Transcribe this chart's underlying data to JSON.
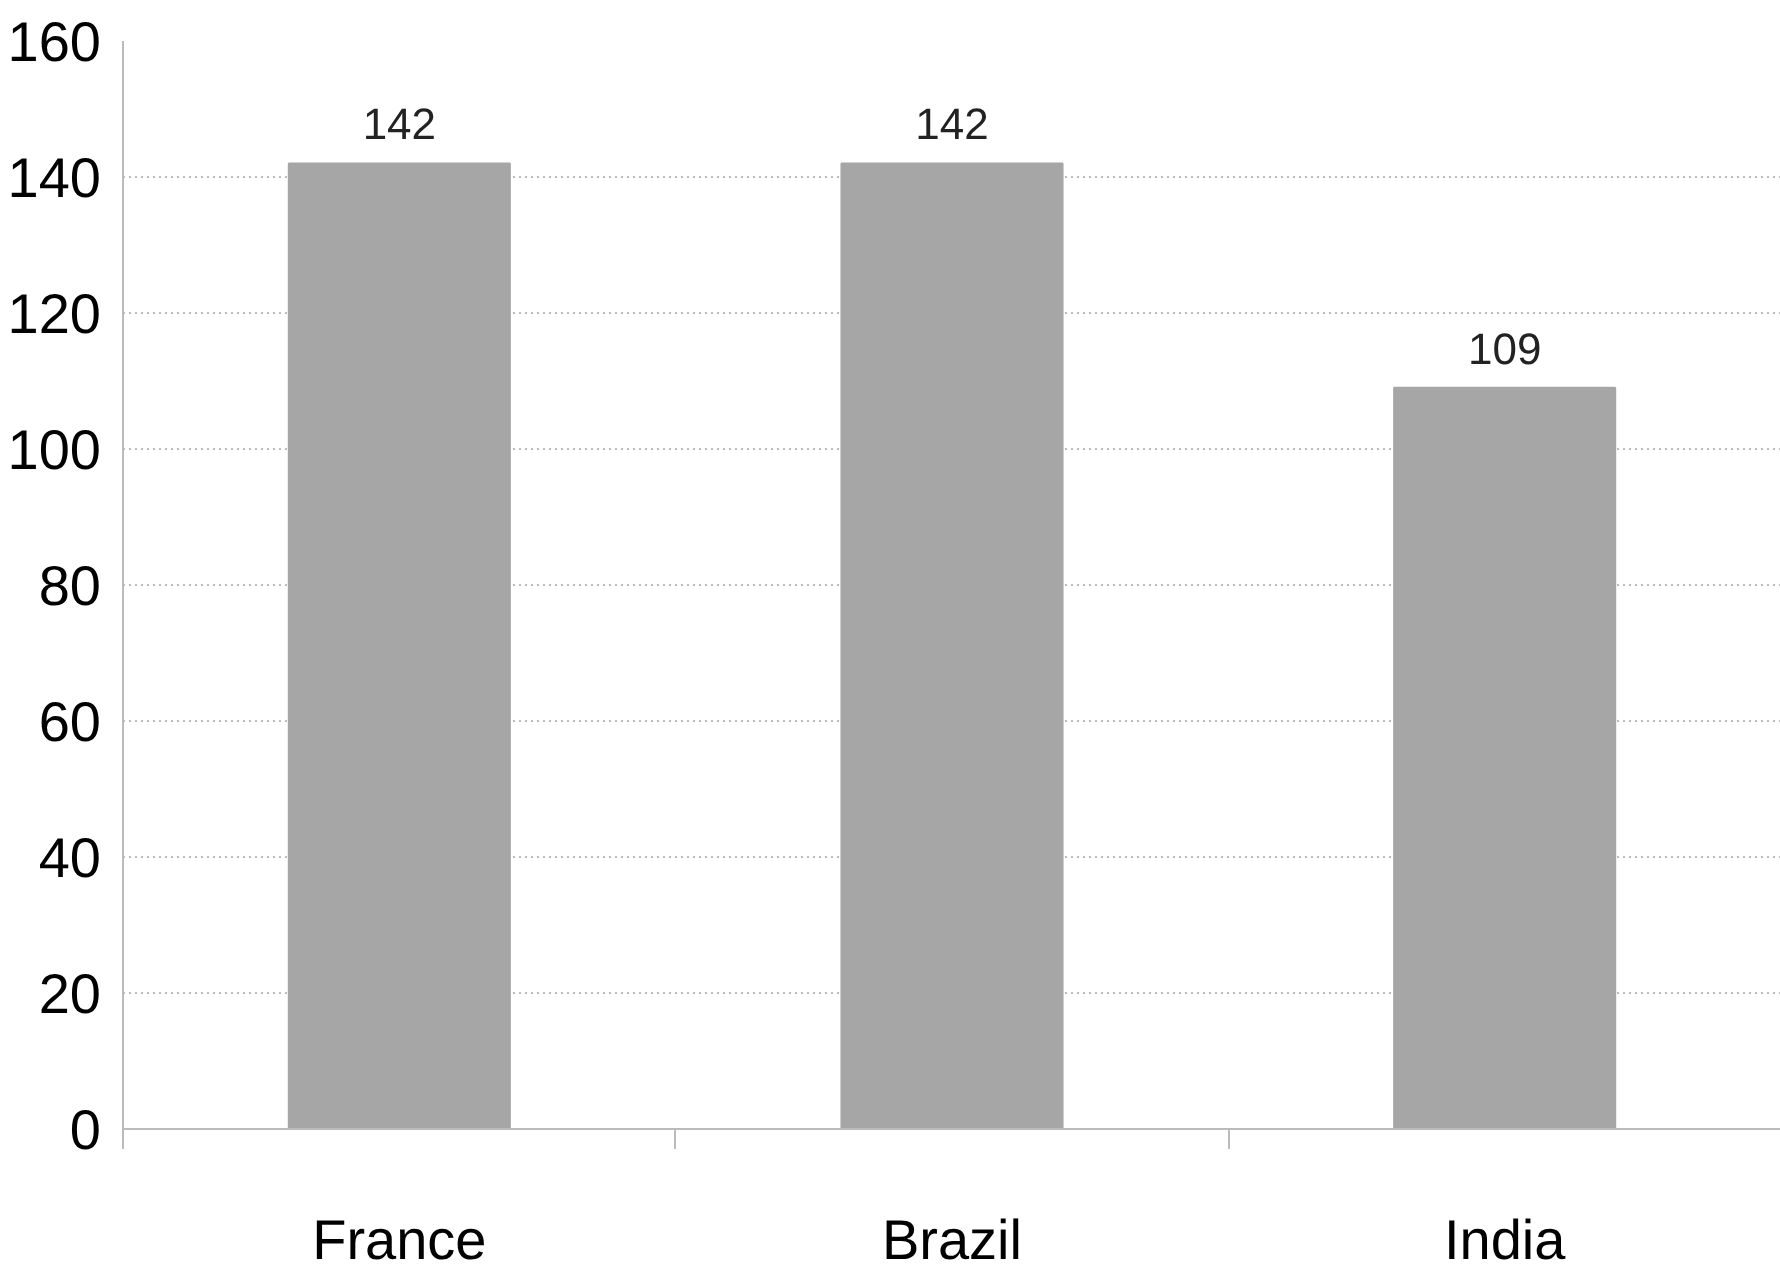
{
  "chart_data": {
    "type": "bar",
    "categories": [
      "France",
      "Brazil",
      "India"
    ],
    "values": [
      142,
      142,
      109
    ],
    "color": "#a6a6a6",
    "data_labels": true,
    "ylim": [
      0,
      160
    ],
    "yticks": [
      0,
      20,
      40,
      60,
      80,
      100,
      120,
      140,
      160
    ],
    "grid": "y"
  }
}
